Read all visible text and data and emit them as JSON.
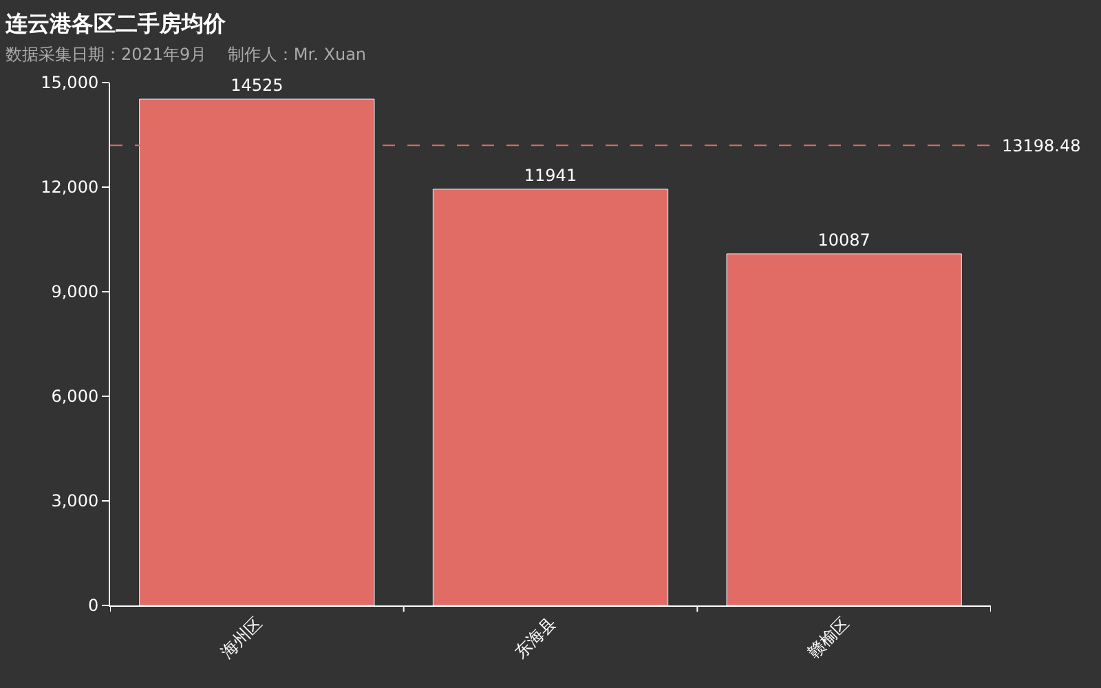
{
  "chart_data": {
    "type": "bar",
    "title": "连云港各区二手房均价",
    "subtitle": "数据采集日期：2021年9月    制作人：Mr. Xuan",
    "categories": [
      "海州区",
      "东海县",
      "赣榆区"
    ],
    "values": [
      14525,
      11941,
      10087
    ],
    "color": "#e06c65",
    "data_labels": true,
    "ylim": [
      0,
      15000
    ],
    "yticks": [
      {
        "value": 0,
        "label": "0"
      },
      {
        "value": 3000,
        "label": "3,000"
      },
      {
        "value": 6000,
        "label": "6,000"
      },
      {
        "value": 9000,
        "label": "9,000"
      },
      {
        "value": 12000,
        "label": "12,000"
      },
      {
        "value": 15000,
        "label": "15,000"
      }
    ],
    "grid": false,
    "legend": false,
    "ref_lines": [
      {
        "axis": "y",
        "value": 13198.48,
        "label": "13198.48",
        "color": "#e06c65",
        "line_style": "dashed"
      }
    ]
  }
}
